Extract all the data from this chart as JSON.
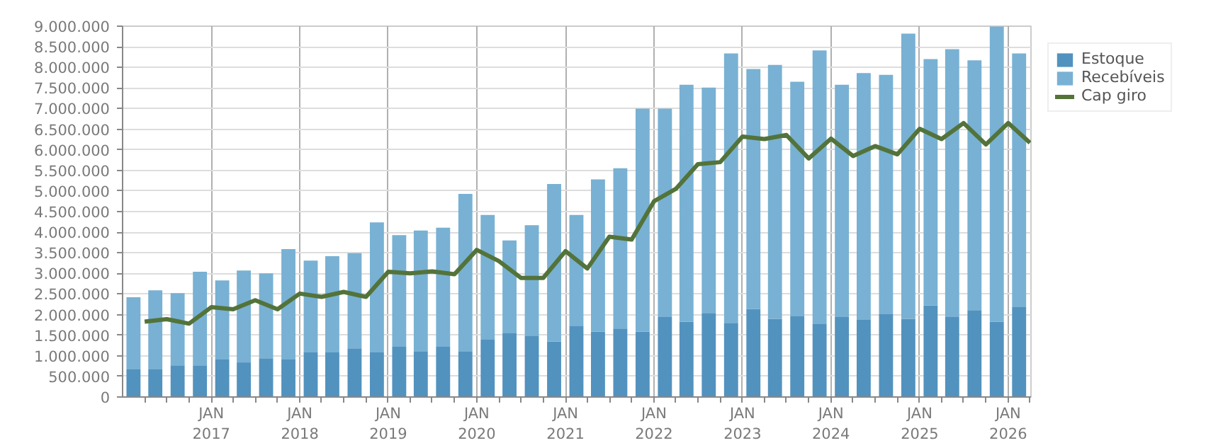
{
  "chart_data": {
    "type": "bar",
    "stacked": true,
    "series": [
      {
        "name": "Estoque",
        "color": "#5292be",
        "x": [
          "2016-02-15",
          "2016-05-15",
          "2016-08-15",
          "2016-11-15",
          "2017-02-15",
          "2017-05-15",
          "2017-08-15",
          "2017-11-15",
          "2018-02-15",
          "2018-05-15",
          "2018-08-15",
          "2018-11-15",
          "2019-02-15",
          "2019-05-15",
          "2019-08-15",
          "2019-11-15",
          "2020-02-15",
          "2020-05-15",
          "2020-08-15",
          "2020-11-15",
          "2021-02-15",
          "2021-05-15",
          "2021-08-15",
          "2021-11-15",
          "2022-02-15",
          "2022-05-15",
          "2022-08-15",
          "2022-11-15",
          "2023-02-15",
          "2023-05-15",
          "2023-08-15",
          "2023-11-15",
          "2024-02-15",
          "2024-05-15",
          "2024-08-15",
          "2024-11-15",
          "2025-02-15",
          "2025-05-15",
          "2025-08-15",
          "2025-11-15",
          "2026-02-15"
        ],
        "values": [
          670000,
          670000,
          770000,
          770000,
          910000,
          840000,
          940000,
          910000,
          1080000,
          1080000,
          1180000,
          1080000,
          1220000,
          1110000,
          1220000,
          1110000,
          1390000,
          1560000,
          1490000,
          1350000,
          1730000,
          1590000,
          1660000,
          1590000,
          1940000,
          1830000,
          2040000,
          1800000,
          2140000,
          1900000,
          1970000,
          1770000,
          1940000,
          1870000,
          2010000,
          1900000,
          2220000,
          1940000,
          2110000,
          1830000,
          2180000
        ]
      },
      {
        "name": "Recebíveis",
        "color": "#78b1d3",
        "x": [
          "2016-02-15",
          "2016-05-15",
          "2016-08-15",
          "2016-11-15",
          "2017-02-15",
          "2017-05-15",
          "2017-08-15",
          "2017-11-15",
          "2018-02-15",
          "2018-05-15",
          "2018-08-15",
          "2018-11-15",
          "2019-02-15",
          "2019-05-15",
          "2019-08-15",
          "2019-11-15",
          "2020-02-15",
          "2020-05-15",
          "2020-08-15",
          "2020-11-15",
          "2021-02-15",
          "2021-05-15",
          "2021-08-15",
          "2021-11-15",
          "2022-02-15",
          "2022-05-15",
          "2022-08-15",
          "2022-11-15",
          "2023-02-15",
          "2023-05-15",
          "2023-08-15",
          "2023-11-15",
          "2024-02-15",
          "2024-05-15",
          "2024-08-15",
          "2024-11-15",
          "2025-02-15",
          "2025-05-15",
          "2025-08-15",
          "2025-11-15",
          "2026-02-15"
        ],
        "values": [
          1750000,
          1920000,
          1750000,
          2270000,
          1920000,
          2230000,
          2060000,
          2680000,
          2230000,
          2340000,
          2310000,
          3160000,
          2710000,
          2930000,
          2890000,
          3820000,
          3030000,
          2240000,
          2680000,
          3820000,
          2690000,
          3690000,
          3890000,
          5410000,
          5060000,
          5750000,
          5470000,
          6540000,
          5820000,
          6160000,
          5680000,
          6640000,
          5640000,
          5990000,
          5810000,
          6920000,
          5980000,
          6500000,
          6060000,
          7160000,
          6160000
        ]
      },
      {
        "name": "Cap giro",
        "type": "line",
        "color": "#53733a",
        "x": [
          "2016-04-01",
          "2016-07-01",
          "2016-10-01",
          "2017-01-01",
          "2017-04-01",
          "2017-07-01",
          "2017-10-01",
          "2018-01-01",
          "2018-04-01",
          "2018-07-01",
          "2018-10-01",
          "2019-01-01",
          "2019-04-01",
          "2019-07-01",
          "2019-10-01",
          "2020-01-01",
          "2020-04-01",
          "2020-07-01",
          "2020-10-01",
          "2021-01-01",
          "2021-04-01",
          "2021-07-01",
          "2021-10-01",
          "2022-01-01",
          "2022-04-01",
          "2022-07-01",
          "2022-10-01",
          "2023-01-01",
          "2023-04-01",
          "2023-07-01",
          "2023-10-01",
          "2024-01-01",
          "2024-04-01",
          "2024-07-01",
          "2024-10-01",
          "2025-01-01",
          "2025-04-01",
          "2025-07-01",
          "2025-10-01",
          "2026-01-01",
          "2026-04-01"
        ],
        "values": [
          1830000,
          1890000,
          1780000,
          2180000,
          2130000,
          2350000,
          2130000,
          2510000,
          2430000,
          2550000,
          2430000,
          3040000,
          3000000,
          3050000,
          2980000,
          3570000,
          3300000,
          2890000,
          2890000,
          3540000,
          3120000,
          3890000,
          3820000,
          4750000,
          5050000,
          5650000,
          5700000,
          6320000,
          6260000,
          6360000,
          5790000,
          6270000,
          5850000,
          6090000,
          5890000,
          6510000,
          6260000,
          6650000,
          6130000,
          6650000,
          6170000
        ]
      }
    ],
    "xlim": [
      "2016-01-01",
      "2026-04-05"
    ],
    "xticks": [
      {
        "value": "2016-04-01",
        "label": null
      },
      {
        "value": "2016-07-01",
        "label": null
      },
      {
        "value": "2016-10-01",
        "label": null
      },
      {
        "value": "2017-01-01",
        "label": "JAN\n2017"
      },
      {
        "value": "2017-04-01",
        "label": null
      },
      {
        "value": "2017-07-01",
        "label": null
      },
      {
        "value": "2017-10-01",
        "label": null
      },
      {
        "value": "2018-01-01",
        "label": "JAN\n2018"
      },
      {
        "value": "2018-04-01",
        "label": null
      },
      {
        "value": "2018-07-01",
        "label": null
      },
      {
        "value": "2018-10-01",
        "label": null
      },
      {
        "value": "2019-01-01",
        "label": "JAN\n2019"
      },
      {
        "value": "2019-04-01",
        "label": null
      },
      {
        "value": "2019-07-01",
        "label": null
      },
      {
        "value": "2019-10-01",
        "label": null
      },
      {
        "value": "2020-01-01",
        "label": "JAN\n2020"
      },
      {
        "value": "2020-04-01",
        "label": null
      },
      {
        "value": "2020-07-01",
        "label": null
      },
      {
        "value": "2020-10-01",
        "label": null
      },
      {
        "value": "2021-01-01",
        "label": "JAN\n2021"
      },
      {
        "value": "2021-04-01",
        "label": null
      },
      {
        "value": "2021-07-01",
        "label": null
      },
      {
        "value": "2021-10-01",
        "label": null
      },
      {
        "value": "2022-01-01",
        "label": "JAN\n2022"
      },
      {
        "value": "2022-04-01",
        "label": null
      },
      {
        "value": "2022-07-01",
        "label": null
      },
      {
        "value": "2022-10-01",
        "label": null
      },
      {
        "value": "2023-01-01",
        "label": "JAN\n2023"
      },
      {
        "value": "2023-04-01",
        "label": null
      },
      {
        "value": "2023-07-01",
        "label": null
      },
      {
        "value": "2023-10-01",
        "label": null
      },
      {
        "value": "2024-01-01",
        "label": "JAN\n2024"
      },
      {
        "value": "2024-04-01",
        "label": null
      },
      {
        "value": "2024-07-01",
        "label": null
      },
      {
        "value": "2024-10-01",
        "label": null
      },
      {
        "value": "2025-01-01",
        "label": "JAN\n2025"
      },
      {
        "value": "2025-04-01",
        "label": null
      },
      {
        "value": "2025-07-01",
        "label": null
      },
      {
        "value": "2025-10-01",
        "label": null
      },
      {
        "value": "2026-01-01",
        "label": "JAN\n2026"
      },
      {
        "value": "2026-04-01",
        "label": null
      }
    ],
    "ylim": [
      0,
      9000000
    ],
    "yticks": [
      0,
      {
        "value": 500000,
        "label": "500.000"
      },
      {
        "value": 1000000,
        "label": "1.000.000"
      },
      {
        "value": 1500000,
        "label": "1.500.000"
      },
      {
        "value": 2000000,
        "label": "2.000.000"
      },
      {
        "value": 2500000,
        "label": "2.500.000"
      },
      {
        "value": 3000000,
        "label": "3.000.000"
      },
      {
        "value": 3500000,
        "label": "3.500.000"
      },
      {
        "value": 4000000,
        "label": "4.000.000"
      },
      {
        "value": 4500000,
        "label": "4.500.000"
      },
      {
        "value": 5000000,
        "label": "5.000.000"
      },
      {
        "value": 5500000,
        "label": "5.500.000"
      },
      {
        "value": 6000000,
        "label": "6.000.000"
      },
      {
        "value": 6500000,
        "label": "6.500.000"
      },
      {
        "value": 7000000,
        "label": "7.000.000"
      },
      {
        "value": 7500000,
        "label": "7.500.000"
      },
      {
        "value": 8000000,
        "label": "8.000.000"
      },
      {
        "value": 8500000,
        "label": "8.500.000"
      },
      {
        "value": 9000000,
        "label": "9.000.000"
      }
    ],
    "grid": true,
    "legend": "top right",
    "marker": "none",
    "line_style": "solid"
  }
}
